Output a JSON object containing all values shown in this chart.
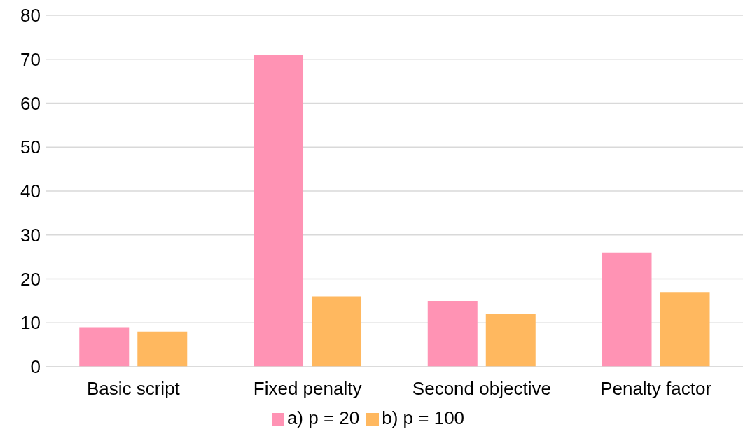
{
  "chart_data": {
    "type": "bar",
    "categories": [
      "Basic script",
      "Fixed penalty",
      "Second objective",
      "Penalty factor"
    ],
    "series": [
      {
        "name": "a) p = 20",
        "color": "#ff93b4",
        "values": [
          9,
          71,
          15,
          26
        ]
      },
      {
        "name": "b) p = 100",
        "color": "#ffb85f",
        "values": [
          8,
          16,
          12,
          17
        ]
      }
    ],
    "ylim": [
      0,
      80
    ],
    "yticks": [
      0,
      10,
      20,
      30,
      40,
      50,
      60,
      70,
      80
    ],
    "grid": "y",
    "legend": "bottom"
  }
}
